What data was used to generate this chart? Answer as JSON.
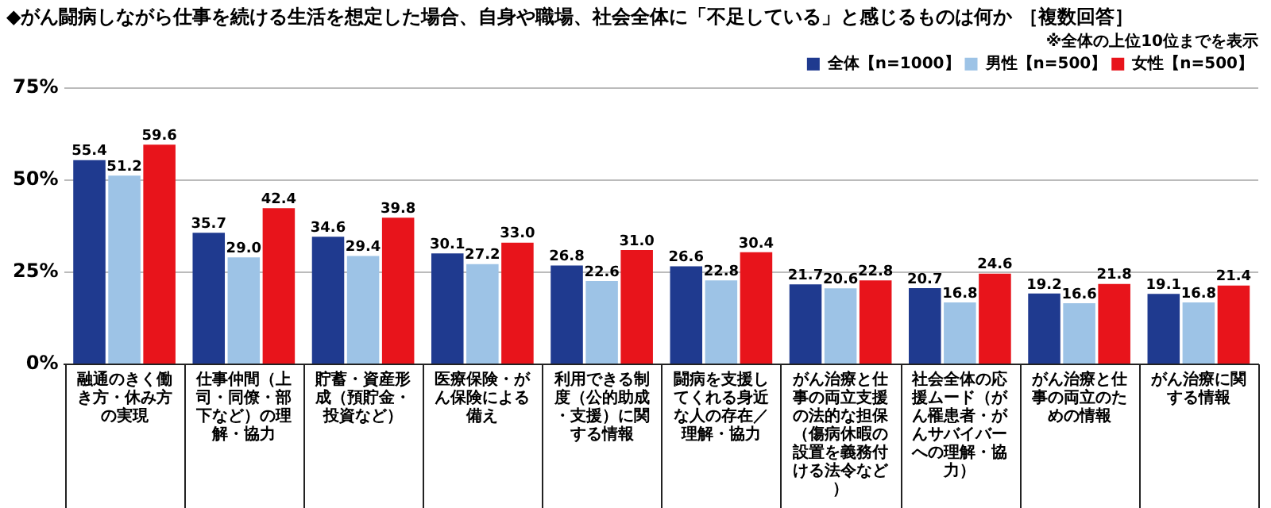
{
  "chart_data": {
    "type": "bar",
    "title": "◆がん闘病しながら仕事を続ける生活を想定した場合、自身や職場、社会全体に「不足している」と感じるものは何か ［複数回答］",
    "annotations": [
      "※全体の上位10位までを表示"
    ],
    "categories": [
      "融通のきく働き方・休み方の実現",
      "仕事仲間（上司・同僚・部下など）の理解・協力",
      "貯蓄・資産形成（預貯金・投資など）",
      "医療保険・がん保険による備え",
      "利用できる制度（公的助成・支援）に関する情報",
      "闘病を支援してくれる身近な人の存在／理解・協力",
      "がん治療と仕事の両立支援の法的な担保（傷病休暇の設置を義務付ける法令など）",
      "社会全体の応援ムード（がん罹患者・がんサバイバーへの理解・協力）",
      "がん治療と仕事の両立のための情報",
      "がん治療に関する情報"
    ],
    "series": [
      {
        "name": "全体【n=1000】",
        "color": "#1f3a8f",
        "values": [
          55.4,
          35.7,
          34.6,
          30.1,
          26.8,
          26.6,
          21.7,
          20.7,
          19.2,
          19.1
        ],
        "value_labels": [
          "55.4",
          "35.7",
          "34.6",
          "30.1",
          "26.8",
          "26.6",
          "21.7",
          "20.7",
          "19.2",
          "19.1"
        ]
      },
      {
        "name": "男性【n=500】",
        "color": "#9dc3e6",
        "values": [
          51.2,
          29.0,
          29.4,
          27.2,
          22.6,
          22.8,
          20.6,
          16.8,
          16.6,
          16.8
        ],
        "value_labels": [
          "51.2",
          "29.0",
          "29.4",
          "27.2",
          "22.6",
          "22.8",
          "20.6",
          "16.8",
          "16.6",
          "16.8"
        ]
      },
      {
        "name": "女性【n=500】",
        "color": "#e8141b",
        "values": [
          59.6,
          42.4,
          39.8,
          33.0,
          31.0,
          30.4,
          22.8,
          24.6,
          21.8,
          21.4
        ],
        "value_labels": [
          "59.6",
          "42.4",
          "39.8",
          "33.0",
          "31.0",
          "30.4",
          "22.8",
          "24.6",
          "21.8",
          "21.4"
        ]
      }
    ],
    "ylim": [
      0,
      75
    ],
    "yticks": [
      {
        "value": 0,
        "label": "0%"
      },
      {
        "value": 25,
        "label": "25%"
      },
      {
        "value": 50,
        "label": "50%"
      },
      {
        "value": 75,
        "label": "75%"
      }
    ],
    "grid": "y",
    "legend": "top right"
  }
}
